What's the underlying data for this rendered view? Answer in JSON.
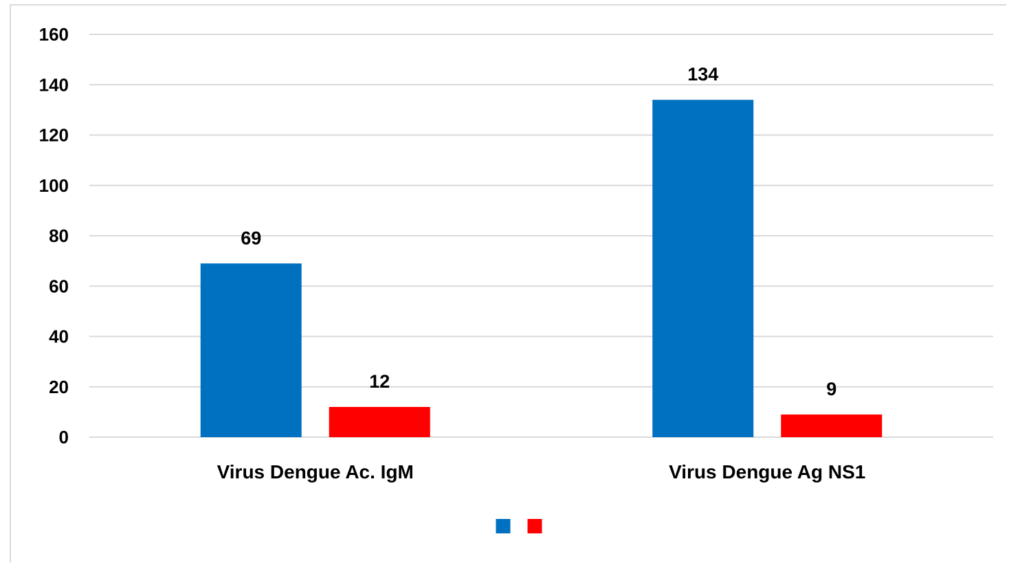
{
  "chart_data": {
    "type": "bar",
    "title": "",
    "xlabel": "",
    "ylabel": "",
    "categories": [
      "Virus Dengue Ac. IgM",
      "Virus Dengue Ag NS1"
    ],
    "series": [
      {
        "color": "#0070c0",
        "values": [
          69,
          134
        ]
      },
      {
        "color": "#ff0000",
        "values": [
          12,
          9
        ]
      }
    ],
    "ylim": [
      0,
      160
    ],
    "yticks": [
      0,
      20,
      40,
      60,
      80,
      100,
      120,
      140,
      160
    ],
    "grid": true,
    "legend_position": "bottom",
    "data_labels": true
  }
}
